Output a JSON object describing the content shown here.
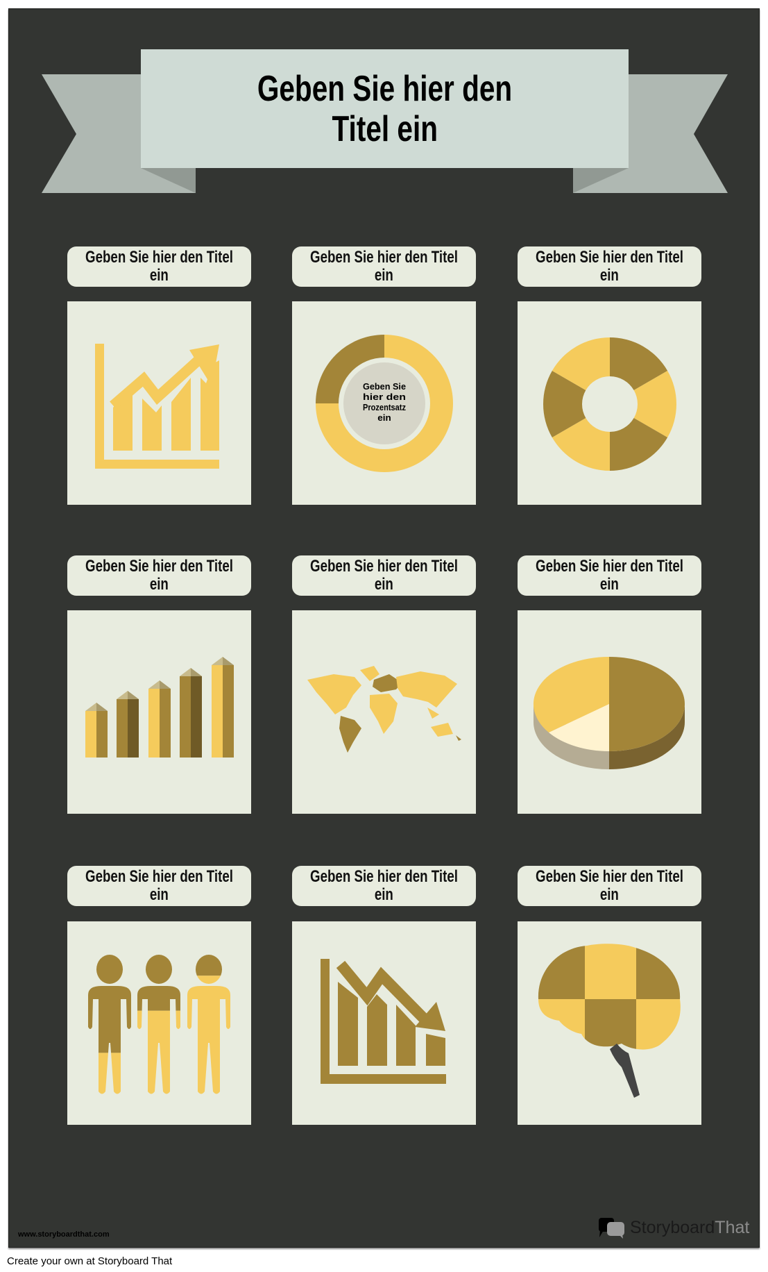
{
  "main_title": {
    "line1": "Geben Sie hier den",
    "line2": "Titel ein"
  },
  "colors": {
    "background": "#333532",
    "card": "#e8ecdf",
    "yellow": "#f5cb5c",
    "olive": "#a38538",
    "banner": "#cfdbd5"
  },
  "cards": [
    {
      "line1": "Geben Sie hier den Titel",
      "line2": "ein",
      "icon": "rising-bar-chart-icon"
    },
    {
      "line1": "Geben Sie hier den Titel",
      "line2": "ein",
      "icon": "donut-chart-icon",
      "center_text": [
        "Geben Sie",
        "hier den",
        "Prozentsatz",
        "ein"
      ],
      "percent": 25
    },
    {
      "line1": "Geben Sie hier den Titel",
      "line2": "ein",
      "icon": "gear-ring-icon"
    },
    {
      "line1": "Geben Sie hier den Titel",
      "line2": "ein",
      "icon": "3d-bar-chart-icon"
    },
    {
      "line1": "Geben Sie hier den Titel",
      "line2": "ein",
      "icon": "world-map-icon"
    },
    {
      "line1": "Geben Sie hier den Titel",
      "line2": "ein",
      "icon": "3d-pie-chart-icon"
    },
    {
      "line1": "Geben Sie hier den Titel",
      "line2": "ein",
      "icon": "people-icon",
      "fill_levels": [
        0.3,
        0.6,
        0.85
      ]
    },
    {
      "line1": "Geben Sie hier den Titel",
      "line2": "ein",
      "icon": "falling-bar-chart-icon"
    },
    {
      "line1": "Geben Sie hier den Titel",
      "line2": "ein",
      "icon": "brain-icon"
    }
  ],
  "footer": {
    "site": "www.storyboardthat.com",
    "logo_a": "Storyboard",
    "logo_b": "That",
    "credit": "Create your own at Storyboard That"
  }
}
